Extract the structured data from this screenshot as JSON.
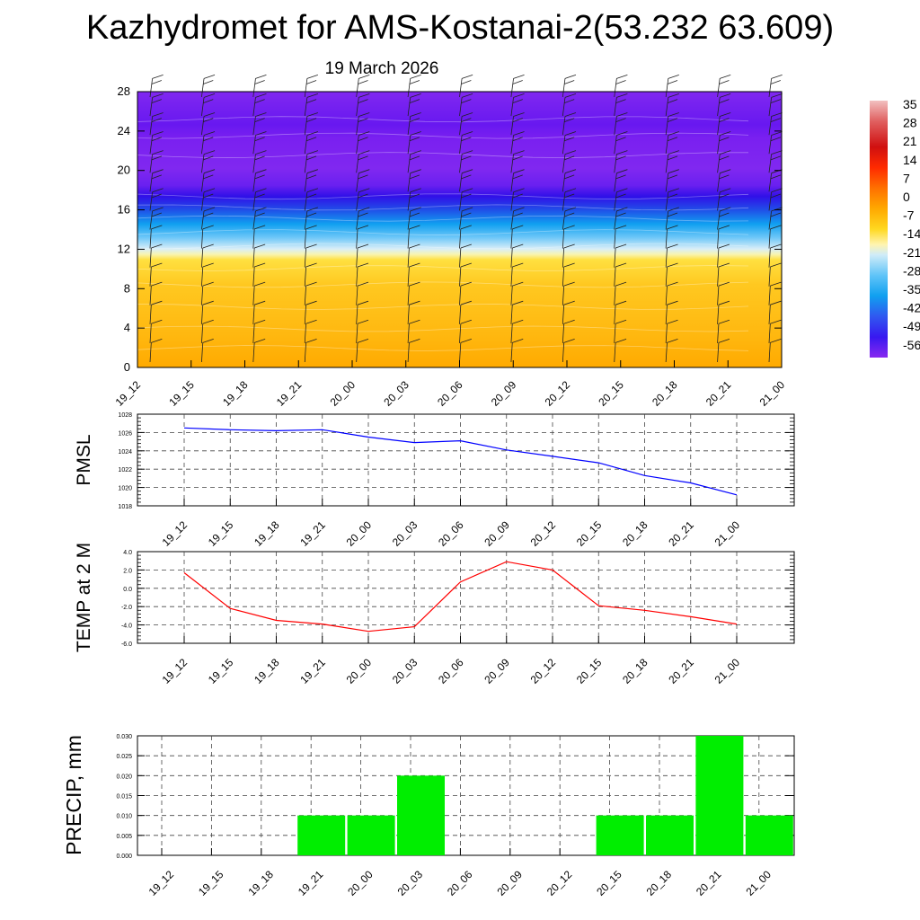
{
  "title": "Kazhydromet for AMS-Kostanai-2(53.232 63.609)",
  "subtitle": "19 March 2026",
  "time_labels": [
    "19_12",
    "19_15",
    "19_18",
    "19_21",
    "20_00",
    "20_03",
    "20_06",
    "20_09",
    "20_12",
    "20_15",
    "20_18",
    "20_21",
    "21_00"
  ],
  "chart_data": [
    {
      "type": "heatmap",
      "name": "cross-section",
      "ylabel": "",
      "yticks": [
        0,
        4,
        8,
        12,
        16,
        20,
        24,
        28
      ],
      "ylim": [
        0,
        28
      ],
      "colorbar_labels": [
        "35",
        "28",
        "21",
        "14",
        "7",
        "0",
        "-7",
        "-14",
        "-21",
        "-28",
        "-35",
        "-42",
        "-49",
        "-56"
      ],
      "colorbar_colors": [
        "#f2b6b6",
        "#e05050",
        "#d01010",
        "#ff2a00",
        "#ff7800",
        "#ffa800",
        "#ffd820",
        "#f8f0a0",
        "#c8e8f8",
        "#80d0f8",
        "#20a8f0",
        "#3060f0",
        "#4020f0",
        "#8828f0"
      ]
    },
    {
      "type": "line",
      "name": "PMSL",
      "ylabel": "PMSL",
      "ylim": [
        1018,
        1028
      ],
      "yticks": [
        "1018",
        "1020",
        "1022",
        "1024",
        "1026",
        "1028"
      ],
      "color": "#0000ff",
      "values": [
        1026.5,
        1026.3,
        1026.2,
        1026.3,
        1025.5,
        1024.9,
        1025.1,
        1024.1,
        1023.4,
        1022.7,
        1021.3,
        1020.5,
        1019.2
      ]
    },
    {
      "type": "line",
      "name": "TEMP",
      "ylabel": "TEMP at 2 M",
      "ylim": [
        -6,
        4
      ],
      "yticks": [
        "-6.0",
        "-4.0",
        "-2.0",
        "0.0",
        "2.0",
        "4.0"
      ],
      "color": "#ff0000",
      "values": [
        1.7,
        -2.2,
        -3.5,
        -3.9,
        -4.7,
        -4.2,
        0.7,
        2.9,
        2.0,
        -1.9,
        -2.4,
        -3.1,
        -3.9
      ]
    },
    {
      "type": "bar",
      "name": "PRECIP",
      "ylabel": "PRECIP, mm",
      "ylim": [
        0,
        0.03
      ],
      "yticks": [
        "0.000",
        "0.005",
        "0.010",
        "0.015",
        "0.020",
        "0.025",
        "0.030"
      ],
      "color": "#00ee00",
      "values": [
        0,
        0,
        0,
        0.01,
        0.01,
        0.02,
        0,
        0,
        0,
        0.01,
        0.01,
        0.03,
        0.01
      ]
    }
  ]
}
